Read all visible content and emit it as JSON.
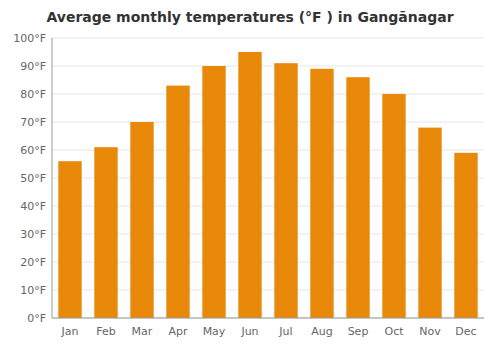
{
  "chart_data": {
    "type": "bar",
    "title": "Average monthly temperatures (°F ) in Gangānagar",
    "categories": [
      "Jan",
      "Feb",
      "Mar",
      "Apr",
      "May",
      "Jun",
      "Jul",
      "Aug",
      "Sep",
      "Oct",
      "Nov",
      "Dec"
    ],
    "values": [
      56,
      61,
      70,
      83,
      90,
      95,
      91,
      89,
      86,
      80,
      68,
      59
    ],
    "color": "#E8890A",
    "ylim": [
      0,
      100
    ],
    "yticks": [
      {
        "value": 0,
        "label": "0°F"
      },
      {
        "value": 10,
        "label": "10°F"
      },
      {
        "value": 20,
        "label": "20°F"
      },
      {
        "value": 30,
        "label": "30°F"
      },
      {
        "value": 40,
        "label": "40°F"
      },
      {
        "value": 50,
        "label": "50°F"
      },
      {
        "value": 60,
        "label": "60°F"
      },
      {
        "value": 70,
        "label": "70°F"
      },
      {
        "value": 80,
        "label": "80°F"
      },
      {
        "value": 90,
        "label": "90°F"
      },
      {
        "value": 100,
        "label": "100°F"
      }
    ],
    "grid": true
  }
}
